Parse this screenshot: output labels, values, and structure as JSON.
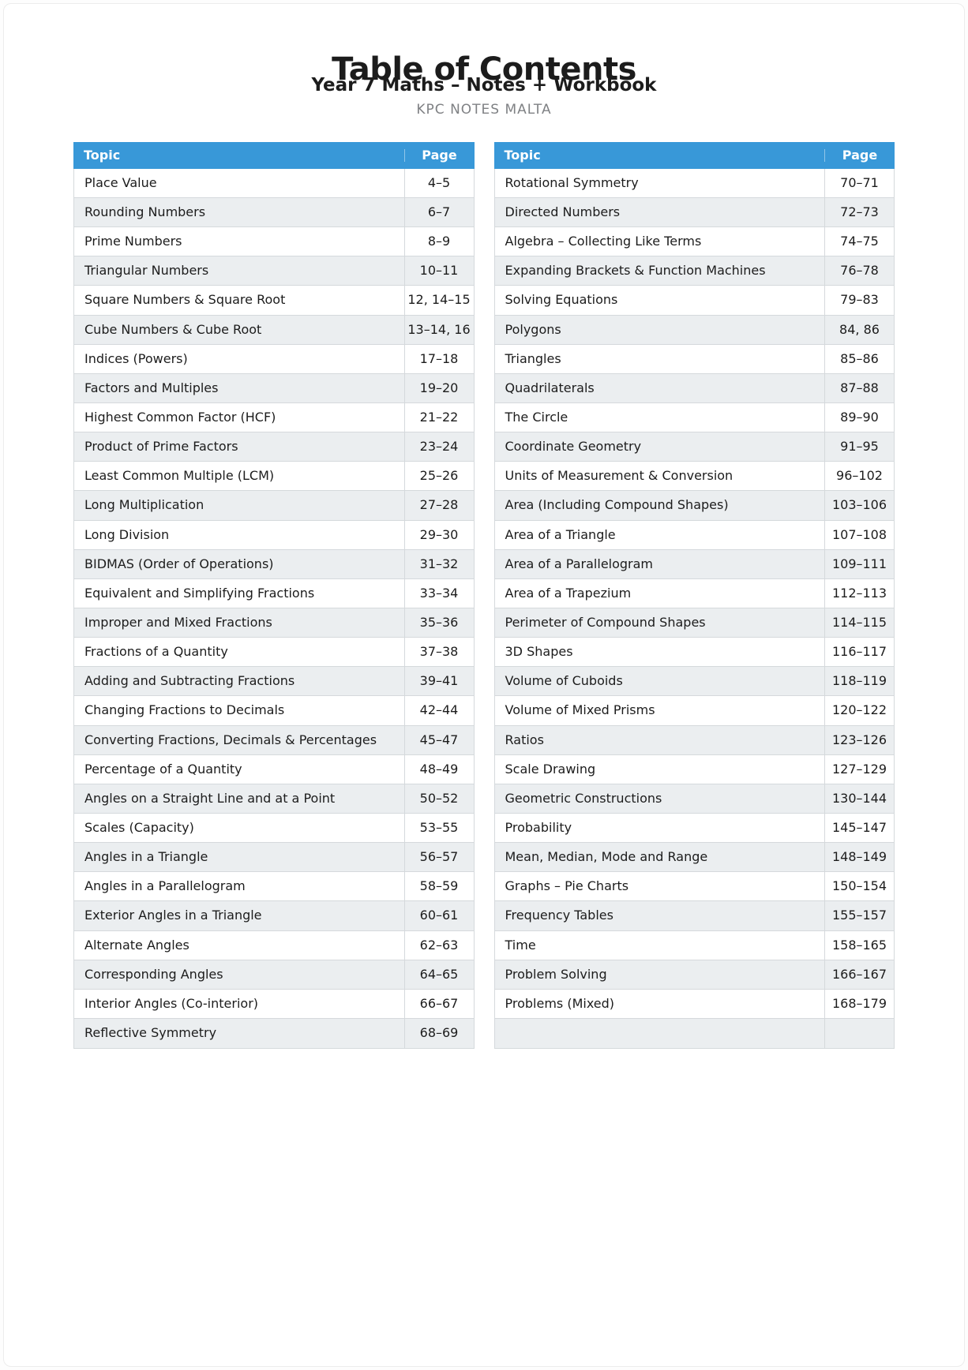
{
  "page": {
    "title": "Table of Contents",
    "subtitle": "Year 7 Maths – Notes + Workbook",
    "brand": "KPC NOTES MALTA"
  },
  "columns": {
    "topic": "Topic",
    "page": "Page"
  },
  "left_table": {
    "rows": [
      {
        "topic": "Place Value",
        "page": "4–5"
      },
      {
        "topic": "Rounding Numbers",
        "page": "6–7"
      },
      {
        "topic": "Prime Numbers",
        "page": "8–9"
      },
      {
        "topic": "Triangular Numbers",
        "page": "10–11"
      },
      {
        "topic": "Square Numbers & Square Root",
        "page": "12, 14–15"
      },
      {
        "topic": "Cube Numbers & Cube Root",
        "page": "13–14, 16"
      },
      {
        "topic": "Indices (Powers)",
        "page": "17–18"
      },
      {
        "topic": "Factors and Multiples",
        "page": "19–20"
      },
      {
        "topic": "Highest Common Factor (HCF)",
        "page": "21–22"
      },
      {
        "topic": "Product of Prime Factors",
        "page": "23–24"
      },
      {
        "topic": "Least Common Multiple (LCM)",
        "page": "25–26"
      },
      {
        "topic": "Long Multiplication",
        "page": "27–28"
      },
      {
        "topic": "Long Division",
        "page": "29–30"
      },
      {
        "topic": "BIDMAS (Order of Operations)",
        "page": "31–32"
      },
      {
        "topic": "Equivalent and Simplifying Fractions",
        "page": "33–34"
      },
      {
        "topic": "Improper and Mixed Fractions",
        "page": "35–36"
      },
      {
        "topic": "Fractions of a Quantity",
        "page": "37–38"
      },
      {
        "topic": "Adding and Subtracting Fractions",
        "page": "39–41"
      },
      {
        "topic": "Changing Fractions to Decimals",
        "page": "42–44"
      },
      {
        "topic": "Converting Fractions, Decimals & Percentages",
        "page": "45–47"
      },
      {
        "topic": "Percentage of a Quantity",
        "page": "48–49"
      },
      {
        "topic": "Angles on a Straight Line and at a Point",
        "page": "50–52"
      },
      {
        "topic": "Scales (Capacity)",
        "page": "53–55"
      },
      {
        "topic": "Angles in a Triangle",
        "page": "56–57"
      },
      {
        "topic": "Angles in a Parallelogram",
        "page": "58–59"
      },
      {
        "topic": "Exterior Angles in a Triangle",
        "page": "60–61"
      },
      {
        "topic": "Alternate Angles",
        "page": "62–63"
      },
      {
        "topic": "Corresponding Angles",
        "page": "64–65"
      },
      {
        "topic": "Interior Angles (Co-interior)",
        "page": "66–67"
      },
      {
        "topic": "Reflective Symmetry",
        "page": "68–69"
      }
    ]
  },
  "right_table": {
    "rows": [
      {
        "topic": "Rotational Symmetry",
        "page": "70–71"
      },
      {
        "topic": "Directed Numbers",
        "page": "72–73"
      },
      {
        "topic": "Algebra – Collecting Like Terms",
        "page": "74–75"
      },
      {
        "topic": "Expanding Brackets & Function Machines",
        "page": "76–78"
      },
      {
        "topic": "Solving Equations",
        "page": "79–83"
      },
      {
        "topic": "Polygons",
        "page": "84, 86"
      },
      {
        "topic": "Triangles",
        "page": "85–86"
      },
      {
        "topic": "Quadrilaterals",
        "page": "87–88"
      },
      {
        "topic": "The Circle",
        "page": "89–90"
      },
      {
        "topic": "Coordinate Geometry",
        "page": "91–95"
      },
      {
        "topic": "Units of Measurement & Conversion",
        "page": "96–102"
      },
      {
        "topic": "Area (Including Compound Shapes)",
        "page": "103–106"
      },
      {
        "topic": "Area of a Triangle",
        "page": "107–108"
      },
      {
        "topic": "Area of a Parallelogram",
        "page": "109–111"
      },
      {
        "topic": "Area of a Trapezium",
        "page": "112–113"
      },
      {
        "topic": "Perimeter of Compound Shapes",
        "page": "114–115"
      },
      {
        "topic": "3D Shapes",
        "page": "116–117"
      },
      {
        "topic": "Volume of Cuboids",
        "page": "118–119"
      },
      {
        "topic": "Volume of Mixed Prisms",
        "page": "120–122"
      },
      {
        "topic": "Ratios",
        "page": "123–126"
      },
      {
        "topic": "Scale Drawing",
        "page": "127–129"
      },
      {
        "topic": "Geometric Constructions",
        "page": "130–144"
      },
      {
        "topic": "Probability",
        "page": "145–147"
      },
      {
        "topic": "Mean, Median, Mode and Range",
        "page": "148–149"
      },
      {
        "topic": "Graphs – Pie Charts",
        "page": "150–154"
      },
      {
        "topic": "Frequency Tables",
        "page": "155–157"
      },
      {
        "topic": "Time",
        "page": "158–165"
      },
      {
        "topic": "Problem Solving",
        "page": "166–167"
      },
      {
        "topic": "Problems (Mixed)",
        "page": "168–179"
      },
      {
        "topic": "",
        "page": ""
      }
    ]
  },
  "colors": {
    "header_bg": "#3898d8",
    "header_text": "#ffffff",
    "row_bg": "#ffffff",
    "row_alt_bg": "#ebeef0",
    "border": "#d5d9dc",
    "text": "#1c1c1c",
    "brand_text": "#7f8184"
  }
}
